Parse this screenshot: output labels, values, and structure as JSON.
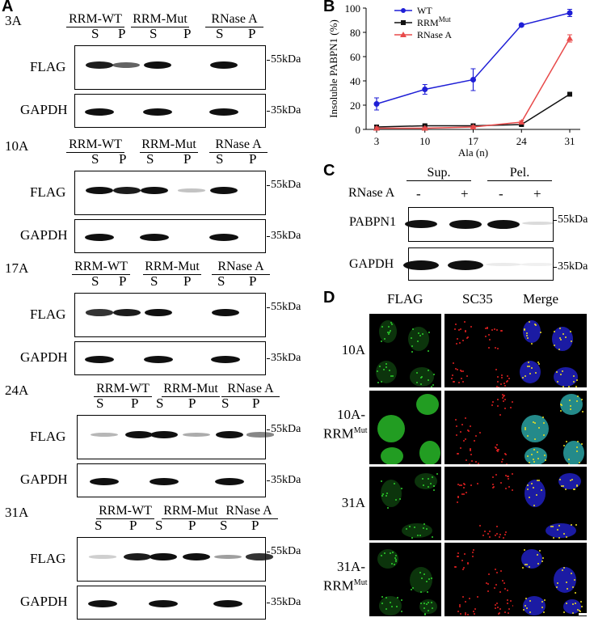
{
  "panels": {
    "A": "A",
    "B": "B",
    "C": "C",
    "D": "D"
  },
  "panelA": {
    "kda55": "55kDa",
    "kda35": "35kDa",
    "blocks": [
      {
        "label": "3A",
        "conds": [
          "RRM-WT",
          "RRM-Mut",
          "RNase A"
        ],
        "lanes": [
          "S",
          "P",
          "S",
          "P",
          "S",
          "P"
        ],
        "proteins": [
          "FLAG",
          "GAPDH"
        ]
      },
      {
        "label": "10A",
        "conds": [
          "RRM-WT",
          "RRM-Mut",
          "RNase A"
        ],
        "lanes": [
          "S",
          "P",
          "S",
          "P",
          "S",
          "P"
        ],
        "proteins": [
          "FLAG",
          "GAPDH"
        ]
      },
      {
        "label": "17A",
        "conds": [
          "RRM-WT",
          "RRM-Mut",
          "RNase A"
        ],
        "lanes": [
          "S",
          "P",
          "S",
          "P",
          "S",
          "P"
        ],
        "proteins": [
          "FLAG",
          "GAPDH"
        ]
      },
      {
        "label": "24A",
        "conds": [
          "RRM-WT",
          "RRM-Mut",
          "RNase A"
        ],
        "lanes": [
          "S",
          "P",
          "S",
          "P",
          "S",
          "P"
        ],
        "proteins": [
          "FLAG",
          "GAPDH"
        ]
      },
      {
        "label": "31A",
        "conds": [
          "RRM-WT",
          "RRM-Mut",
          "RNase A"
        ],
        "lanes": [
          "S",
          "P",
          "S",
          "P",
          "S",
          "P"
        ],
        "proteins": [
          "FLAG",
          "GAPDH"
        ]
      }
    ],
    "band_intensity_flag": [
      [
        0.8,
        0.5,
        0.9,
        0.0,
        0.9,
        0.0
      ],
      [
        0.9,
        0.8,
        0.9,
        0.1,
        0.9,
        0.0
      ],
      [
        0.7,
        0.8,
        0.95,
        0.0,
        0.9,
        0.0
      ],
      [
        0.15,
        0.9,
        0.9,
        0.2,
        0.9,
        0.35
      ],
      [
        0.05,
        0.8,
        0.95,
        0.85,
        0.25,
        0.7
      ]
    ],
    "band_intensity_gapdh": [
      [
        1,
        0,
        1,
        0,
        1,
        0
      ],
      [
        1,
        0,
        1,
        0,
        1,
        0
      ],
      [
        1,
        0,
        1,
        0,
        1,
        0
      ],
      [
        1,
        0,
        1,
        0,
        1,
        0
      ],
      [
        1,
        0,
        1,
        0,
        1,
        0
      ]
    ]
  },
  "chart_data": {
    "type": "line",
    "x": [
      3,
      10,
      17,
      24,
      31
    ],
    "xlabel": "Ala (n)",
    "ylabel": "Insoluble PABPN1 (%)",
    "ylim": [
      0,
      100
    ],
    "yticks": [
      0,
      20,
      40,
      60,
      80,
      100
    ],
    "grid": false,
    "legend_position": "top-left",
    "series": [
      {
        "name": "WT",
        "sup": "",
        "values": [
          21,
          33,
          41,
          86,
          96
        ],
        "errors": [
          5,
          4,
          9,
          1,
          3
        ],
        "color": "#1f1fd6",
        "marker": "circle"
      },
      {
        "name": "RRM",
        "sup": "Mut",
        "values": [
          2,
          3,
          3,
          4,
          29
        ],
        "errors": [
          1,
          1,
          1,
          1,
          1
        ],
        "color": "#111111",
        "marker": "square"
      },
      {
        "name": "RNase A",
        "sup": "",
        "values": [
          1,
          1,
          2,
          6,
          75
        ],
        "errors": [
          1,
          1,
          1,
          1,
          3
        ],
        "color": "#e84a4a",
        "marker": "triangle"
      }
    ]
  },
  "panelC": {
    "groups": [
      "Sup.",
      "Pel."
    ],
    "rnase_label": "RNase A",
    "signs": [
      "-",
      "+",
      "-",
      "+"
    ],
    "proteins": [
      "PABPN1",
      "GAPDH"
    ],
    "kda55": "55kDa",
    "kda35": "35kDa",
    "pabpn1_intensity": [
      0.9,
      0.95,
      1.0,
      0.05
    ],
    "gapdh_intensity": [
      1.0,
      1.0,
      0.15,
      0.1
    ]
  },
  "panelD": {
    "columns": [
      "FLAG",
      "SC35",
      "Merge"
    ],
    "rows": [
      {
        "label": "10A",
        "sup": ""
      },
      {
        "label": "10A-\nRRM",
        "sup": "Mut"
      },
      {
        "label": "31A",
        "sup": ""
      },
      {
        "label": "31A-\nRRM",
        "sup": "Mut"
      }
    ],
    "colors": {
      "flag": "#2ed12e",
      "sc35": "#e02020",
      "dapi": "#2020c0",
      "merge_dot": "#f0e020"
    }
  }
}
